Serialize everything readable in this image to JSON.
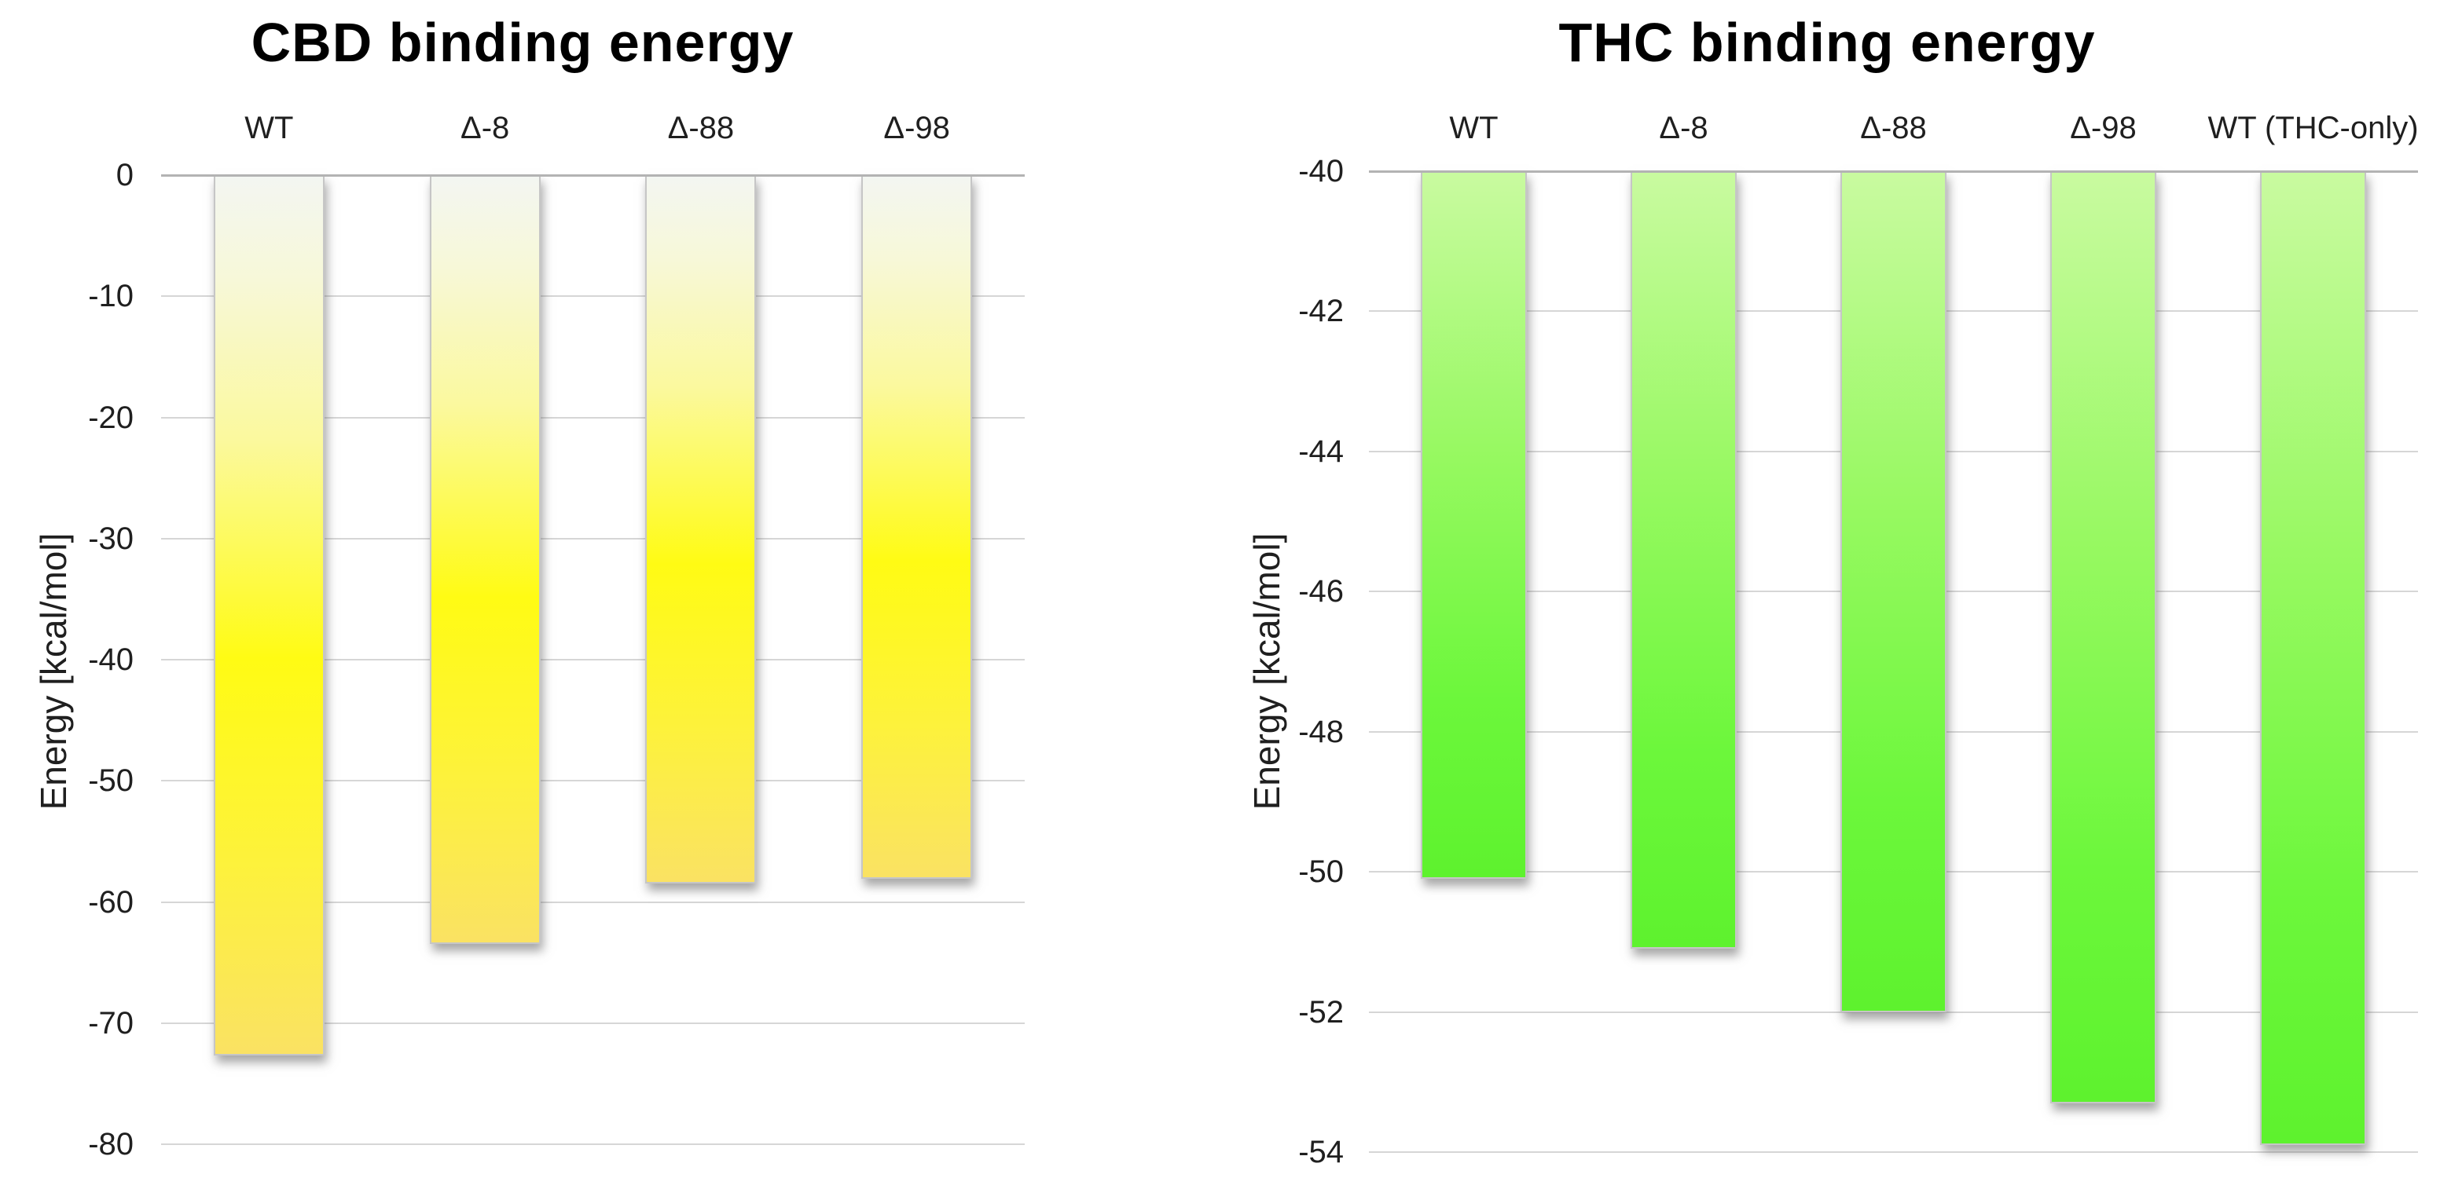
{
  "page": {
    "background_color": "#ffffff",
    "text_color": "#000000",
    "gridline_color": "#d6d6d6",
    "axis_line_color": "#b3b3b3"
  },
  "chart_data": [
    {
      "type": "bar",
      "title": "CBD binding energy",
      "ylabel": "Energy [kcal/mol]",
      "xlabel": "",
      "categories": [
        "WT",
        "Δ-8",
        "Δ-88",
        "Δ-98"
      ],
      "values": [
        -72.7,
        -63.5,
        -58.5,
        -58.1
      ],
      "ylim": [
        0,
        -80
      ],
      "ytick_step": 10,
      "ytick_labels": [
        "0",
        "-10",
        "-20",
        "-30",
        "-40",
        "-50",
        "-60",
        "-70",
        "-80"
      ],
      "grid": true,
      "legend": "none",
      "bar_orientation": "vertical-negative",
      "bar_gradient": [
        [
          0,
          "#f3f6f2"
        ],
        [
          12,
          "#f7f8d8"
        ],
        [
          30,
          "#fbf99e"
        ],
        [
          55,
          "#fffb14"
        ],
        [
          78,
          "#fdf23b"
        ],
        [
          100,
          "#fae263"
        ]
      ]
    },
    {
      "type": "bar",
      "title": "THC binding energy",
      "ylabel": "Energy [kcal/mol]",
      "xlabel": "",
      "categories": [
        "WT",
        "Δ-8",
        "Δ-88",
        "Δ-98",
        "WT (THC-only)"
      ],
      "values": [
        -50.1,
        -51.1,
        -52.0,
        -53.3,
        -53.9
      ],
      "ylim": [
        -40,
        -54
      ],
      "ytick_step": 2,
      "ytick_labels": [
        "-40",
        "-42",
        "-44",
        "-46",
        "-48",
        "-50",
        "-52",
        "-54"
      ],
      "grid": true,
      "legend": "none",
      "bar_orientation": "vertical-negative",
      "bar_gradient": [
        [
          0,
          "#c9faa0"
        ],
        [
          40,
          "#97f961"
        ],
        [
          75,
          "#6cf73b"
        ],
        [
          100,
          "#5ef22e"
        ]
      ]
    }
  ]
}
